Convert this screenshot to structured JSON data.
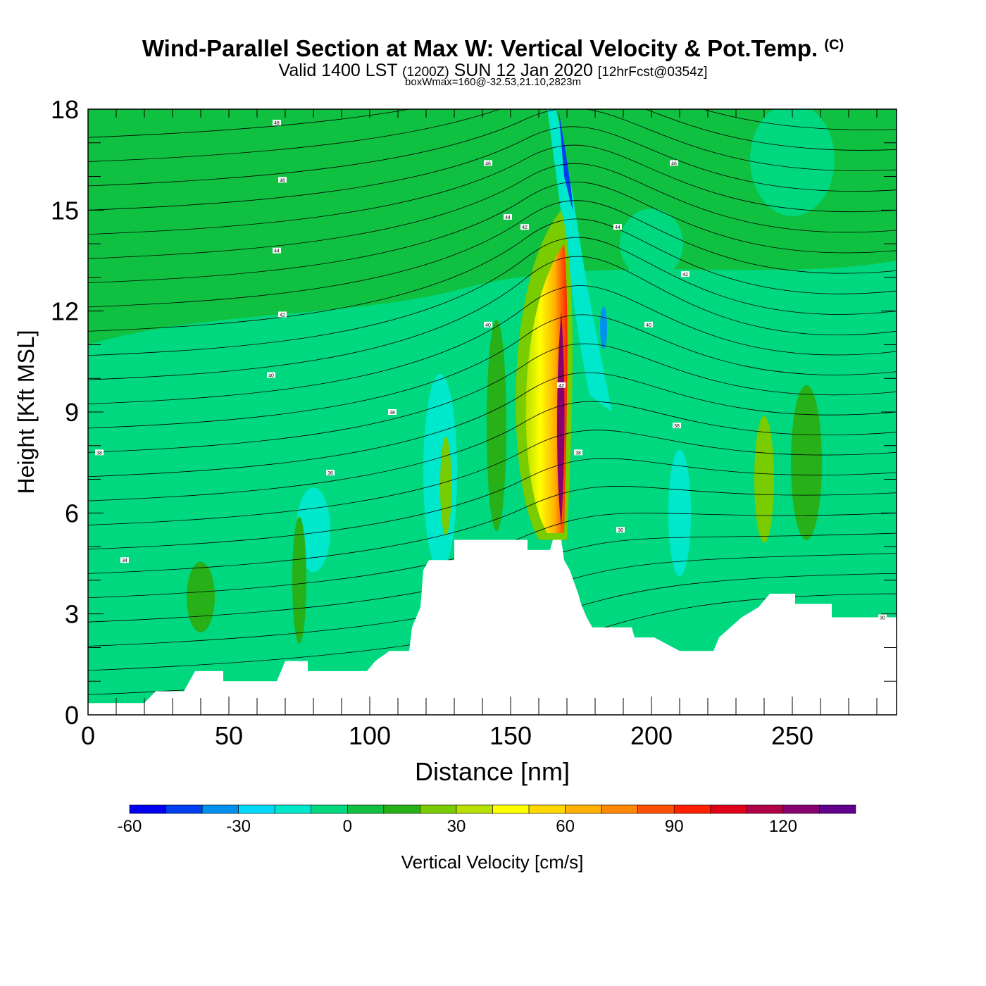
{
  "header": {
    "title": "Wind-Parallel Section at Max W: Vertical Velocity & Pot.Temp.",
    "title_mark": "(C)",
    "subtitle_a": "Valid 1400 LST",
    "subtitle_b": "(1200Z)",
    "subtitle_c": "SUN 12 Jan 2020",
    "subtitle_d": "[12hrFcst@0354z]",
    "box_info": "boxWmax=160@-32.53,21.10,2823m"
  },
  "chart_data": {
    "type": "heatmap",
    "xlabel": "Distance [nm]",
    "ylabel": "Height [Kft MSL]",
    "xlim": [
      0,
      287
    ],
    "ylim": [
      0,
      18
    ],
    "x_ticks": [
      0,
      50,
      100,
      150,
      200,
      250
    ],
    "y_ticks": [
      0,
      3,
      6,
      9,
      12,
      15,
      18
    ],
    "colorbar": {
      "label": "Vertical Velocity [cm/s]",
      "min": -60,
      "max": 140,
      "step": 10,
      "tick_labels": [
        -60,
        -30,
        0,
        30,
        60,
        90,
        120
      ],
      "colors": [
        "#0000f0",
        "#0040f0",
        "#0090ee",
        "#00d8f8",
        "#00e8cc",
        "#00d880",
        "#10c040",
        "#28b018",
        "#78cc00",
        "#b8e000",
        "#ffff00",
        "#ffd800",
        "#ffb000",
        "#ff8800",
        "#ff5000",
        "#ff2000",
        "#e00018",
        "#b00048",
        "#880070",
        "#60008c"
      ]
    },
    "terrain_kft": [
      [
        0,
        0.35
      ],
      [
        20,
        0.35
      ],
      [
        24,
        0.7
      ],
      [
        34,
        0.7
      ],
      [
        36,
        1.0
      ],
      [
        38,
        1.3
      ],
      [
        48,
        1.3
      ],
      [
        48,
        1.0
      ],
      [
        67,
        1.0
      ],
      [
        70,
        1.6
      ],
      [
        78,
        1.6
      ],
      [
        78,
        1.3
      ],
      [
        99,
        1.3
      ],
      [
        102,
        1.6
      ],
      [
        107,
        1.9
      ],
      [
        114,
        1.9
      ],
      [
        115,
        2.6
      ],
      [
        118,
        3.2
      ],
      [
        119,
        4.3
      ],
      [
        121,
        4.6
      ],
      [
        130,
        4.6
      ],
      [
        130,
        5.2
      ],
      [
        156,
        5.2
      ],
      [
        156,
        4.9
      ],
      [
        164,
        4.9
      ],
      [
        165,
        5.2
      ],
      [
        168,
        5.2
      ],
      [
        169,
        4.6
      ],
      [
        171,
        4.3
      ],
      [
        174,
        3.6
      ],
      [
        175,
        3.3
      ],
      [
        177,
        2.9
      ],
      [
        179,
        2.6
      ],
      [
        193,
        2.6
      ],
      [
        194,
        2.3
      ],
      [
        201,
        2.3
      ],
      [
        210,
        1.9
      ],
      [
        222,
        1.9
      ],
      [
        224,
        2.3
      ],
      [
        228,
        2.6
      ],
      [
        232,
        2.9
      ],
      [
        238,
        3.2
      ],
      [
        242,
        3.6
      ],
      [
        251,
        3.6
      ],
      [
        251,
        3.3
      ],
      [
        264,
        3.3
      ],
      [
        264,
        2.9
      ],
      [
        287,
        2.9
      ]
    ],
    "contour_labels": [
      {
        "x": 67,
        "y": 17.6,
        "text": "48"
      },
      {
        "x": 69,
        "y": 15.9,
        "text": "46"
      },
      {
        "x": 142,
        "y": 16.4,
        "text": "46"
      },
      {
        "x": 208,
        "y": 16.4,
        "text": "46"
      },
      {
        "x": 149,
        "y": 14.8,
        "text": "44"
      },
      {
        "x": 155,
        "y": 14.5,
        "text": "42"
      },
      {
        "x": 188,
        "y": 14.5,
        "text": "44"
      },
      {
        "x": 67,
        "y": 13.8,
        "text": "44"
      },
      {
        "x": 212,
        "y": 13.1,
        "text": "42"
      },
      {
        "x": 69,
        "y": 11.9,
        "text": "42"
      },
      {
        "x": 142,
        "y": 11.6,
        "text": "40"
      },
      {
        "x": 199,
        "y": 11.6,
        "text": "40"
      },
      {
        "x": 65,
        "y": 10.1,
        "text": "40"
      },
      {
        "x": 168,
        "y": 9.8,
        "text": "42"
      },
      {
        "x": 108,
        "y": 9.0,
        "text": "38"
      },
      {
        "x": 209,
        "y": 8.6,
        "text": "38"
      },
      {
        "x": 4,
        "y": 7.8,
        "text": "38"
      },
      {
        "x": 174,
        "y": 7.8,
        "text": "38"
      },
      {
        "x": 86,
        "y": 7.2,
        "text": "36"
      },
      {
        "x": 189,
        "y": 5.5,
        "text": "36"
      },
      {
        "x": 13,
        "y": 4.6,
        "text": "34"
      },
      {
        "x": 282,
        "y": 2.9,
        "text": "30"
      }
    ]
  }
}
